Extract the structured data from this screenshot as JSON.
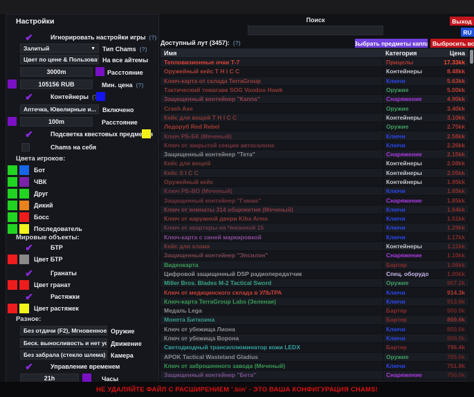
{
  "sidebar": {
    "title": "Настройки",
    "ignore_game_settings": {
      "label": "Игнорировать настройки игры",
      "help": "(?)"
    },
    "chams_type": {
      "value": "Залитый",
      "label": "Тип Chams",
      "help": "(?)"
    },
    "all_items": {
      "value": "Цвет по цене & Пользователь",
      "label": "На все айтемы"
    },
    "distance": {
      "value": "3000m",
      "label": "Расстояние",
      "swatch": "#7a10c4"
    },
    "min_price": {
      "value": "105156 RUB",
      "label": "Мин. цена",
      "help": "(?)",
      "swatch": "#7a10c4"
    },
    "containers": {
      "label": "Контейнеры",
      "help": "(?)",
      "swatch": "#1414f0"
    },
    "containers_filter": {
      "value": "Аптечка, Ювелирные и...",
      "label": "Включено"
    },
    "containers_distance": {
      "value": "100m",
      "label": "Расстояние",
      "swatch": "#7a10c4"
    },
    "quest_highlight": {
      "label": "Подсветка квестовых предметов",
      "swatch": "#f2f218"
    },
    "self_chams": {
      "label": "Chams на себя"
    },
    "player_colors_title": "Цвета игроков:",
    "player_colors": [
      {
        "label": "Бот",
        "c1": "#21d421",
        "c2": "#1766e8"
      },
      {
        "label": "ЧВК",
        "c1": "#21d421",
        "c2": "#7a22a8"
      },
      {
        "label": "Друг",
        "c1": "#21d421",
        "c2": "#21d421"
      },
      {
        "label": "Дикий",
        "c1": "#21d421",
        "c2": "#e8821c"
      },
      {
        "label": "Босс",
        "c1": "#21d421",
        "c2": "#ee1c1c"
      },
      {
        "label": "Последователь",
        "c1": "#21d421",
        "c2": "#f2f21c"
      }
    ],
    "world_objects_title": "Мировые объекты:",
    "btr": {
      "label": "БТР"
    },
    "btr_color": {
      "label": "Цвет БТР",
      "c1": "#ee1c1c",
      "c2": "#8a8a8a"
    },
    "grenades": {
      "label": "Гранаты"
    },
    "grenade_color": {
      "label": "Цвет гранат",
      "c1": "#ee1c1c",
      "c2": "#ee1c1c"
    },
    "tripwires": {
      "label": "Растяжки"
    },
    "tripwire_color": {
      "label": "Цвет растяжек",
      "c1": "#ee1c1c",
      "c2": "#f2f21c"
    },
    "misc_title": "Разное:",
    "weapon": {
      "value": "Без отдачи (F2), Мгновенное п",
      "label": "Оружие"
    },
    "movement": {
      "value": "Беск. выносливость и нет уста",
      "label": "Движение"
    },
    "camera": {
      "value": "Без забрала (стекло шлема)",
      "label": "Камера"
    },
    "time_control": {
      "label": "Управление временем"
    },
    "hours": {
      "value": "21h",
      "label": "Часы",
      "swatch": "#7a10c4"
    }
  },
  "header": {
    "search_label": "Поиск",
    "search_value": "",
    "exit_button": "Выход",
    "lang_button": "RU",
    "kappa_button": "Выбрать предметы каппа",
    "discard_button": "Выбросить все",
    "loot_label": "Доступный лут (3457):",
    "loot_help": "(?)"
  },
  "table": {
    "columns": {
      "name": "Имя",
      "category": "Категория",
      "price": "Цена"
    },
    "category_colors": {
      "Прицелы": "#b03a2e",
      "Контейнеры": "#c7c7cf",
      "Ключи": "#2a46e8",
      "Оружие": "#3f9e63",
      "Снаряжение": "#a83ae0",
      "Бартер": "#8a2d2d",
      "Спец. оборудование": "#cbb8ea"
    },
    "rows": [
      {
        "name": "Тепловизионные очки Т-7",
        "name_color": "#e04438",
        "category": "Прицелы",
        "price": "17.33kk",
        "price_color": "#ff4b33"
      },
      {
        "name": "Оружейный кейс Т Н I С С",
        "name_color": "#aa4038",
        "category": "Контейнеры",
        "price": "8.48kk",
        "price_color": "#cf4136"
      },
      {
        "name": "Ключ-карта от склада TerraGroup",
        "name_color": "#9a3c38",
        "category": "Ключи",
        "price": "5.63kk",
        "price_color": "#c23e34"
      },
      {
        "name": "Тактический томагавк SOG Voodoo Hawk",
        "name_color": "#8e3834",
        "category": "Оружие",
        "price": "5.00kk",
        "price_color": "#bc3c33"
      },
      {
        "name": "Защищенный контейнер \"Каппа\"",
        "name_color": "#93404e",
        "category": "Снаряжение",
        "price": "4.90kk",
        "price_color": "#b63a32"
      },
      {
        "name": "Crash Axe",
        "name_color": "#8a3a36",
        "category": "Оружие",
        "price": "3.40kk",
        "price_color": "#b03931"
      },
      {
        "name": "Кейс для вещей Т Н I С С",
        "name_color": "#8a3a36",
        "category": "Контейнеры",
        "price": "3.10kk",
        "price_color": "#ab3830"
      },
      {
        "name": "Ледоруб Red Rebel",
        "name_color": "#a03a34",
        "category": "Оружие",
        "price": "2.75kk",
        "price_color": "#a63630"
      },
      {
        "name": "Ключ РБ-БК (Меченый)",
        "name_color": "#7a3440",
        "category": "Ключи",
        "price": "2.58kk",
        "price_color": "#a2352f"
      },
      {
        "name": "Ключ от закрытой секции автосалона",
        "name_color": "#7a3440",
        "category": "Ключи",
        "price": "2.26kk",
        "price_color": "#9e342e"
      },
      {
        "name": "Защищенный контейнер \"Тета\"",
        "name_color": "#8d8d92",
        "category": "Снаряжение",
        "price": "2.15kk",
        "price_color": "#9a332e"
      },
      {
        "name": "Кейс для вещей",
        "name_color": "#7e3a38",
        "category": "Контейнеры",
        "price": "2.08kk",
        "price_color": "#96322d"
      },
      {
        "name": "Кейс S I C C",
        "name_color": "#7e3a38",
        "category": "Контейнеры",
        "price": "2.05kk",
        "price_color": "#93312d"
      },
      {
        "name": "Оружейный кейс",
        "name_color": "#7e3a38",
        "category": "Контейнеры",
        "price": "1.95kk",
        "price_color": "#8f302c"
      },
      {
        "name": "Ключ РБ-ВО (Меченый)",
        "name_color": "#743440",
        "category": "Ключи",
        "price": "1.85kk",
        "price_color": "#8c2f2b"
      },
      {
        "name": "Защищенный контейнер \"Гамма\"",
        "name_color": "#743440",
        "category": "Снаряжение",
        "price": "1.85kk",
        "price_color": "#8c2f2b"
      },
      {
        "name": "Ключ от комнаты 314 общежития (Меченый)",
        "name_color": "#8a3a44",
        "category": "Ключи",
        "price": "1.64kk",
        "price_color": "#892e2a"
      },
      {
        "name": "Ключ от наружной двери Kiba Arms",
        "name_color": "#8a3a38",
        "category": "Ключи",
        "price": "1.51kk",
        "price_color": "#862d2a"
      },
      {
        "name": "Ключ от квартиры на Чеканной 15",
        "name_color": "#703a4a",
        "category": "Ключи",
        "price": "1.29kk",
        "price_color": "#832c29"
      },
      {
        "name": "Ключ-карта с синей маркировкой",
        "name_color": "#8a4a9a",
        "category": "Ключи",
        "price": "1.17kk",
        "price_color": "#802b28"
      },
      {
        "name": "Кейс для хлама",
        "name_color": "#7e3a38",
        "category": "Контейнеры",
        "price": "1.11kk",
        "price_color": "#7e2b28"
      },
      {
        "name": "Защищенный контейнер \"Эпсилон\"",
        "name_color": "#7c4652",
        "category": "Снаряжение",
        "price": "1.10kk",
        "price_color": "#7c2a27"
      },
      {
        "name": "Видеокарта",
        "name_color": "#3a9a55",
        "category": "Бартер",
        "price": "1.06kk",
        "price_color": "#7a2a27"
      },
      {
        "name": "Цифровой защищенный DSP радиопередатчик",
        "name_color": "#93939b",
        "category": "Спец. оборудование",
        "price": "1.00kk",
        "price_color": "#782926"
      },
      {
        "name": "Miller Bros. Blades M-2 Tactical Sword",
        "name_color": "#3aa585",
        "category": "Оружие",
        "price": "967.2k",
        "price_color": "#762926"
      },
      {
        "name": "Ключ от медицинского склада в УЛЬТРА",
        "name_color": "#c84038",
        "category": "Ключи",
        "price": "914.3k",
        "price_color": "#b83a32"
      },
      {
        "name": "Ключ-карта TerraGroup Labs (Зеленая)",
        "name_color": "#3a9a55",
        "category": "Ключи",
        "price": "913.8k",
        "price_color": "#742825"
      },
      {
        "name": "Медаль Lega",
        "name_color": "#8d8d92",
        "category": "Бартер",
        "price": "900.0k",
        "price_color": "#722825"
      },
      {
        "name": "Монета Биткоина",
        "name_color": "#3a9a8a",
        "category": "Бартер",
        "price": "869.6k",
        "price_color": "#9c342e"
      },
      {
        "name": "Ключ от убежища Лиона",
        "name_color": "#8d8d92",
        "category": "Ключи",
        "price": "850.0k",
        "price_color": "#702724"
      },
      {
        "name": "Ключ от убежища Ворона",
        "name_color": "#8d8d92",
        "category": "Ключи",
        "price": "800.0k",
        "price_color": "#6e2624"
      },
      {
        "name": "Светодиодный трансиллюминатор кожи LEDX",
        "name_color": "#35a0a0",
        "category": "Бартер",
        "price": "796.4k",
        "price_color": "#8a2e2a"
      },
      {
        "name": "APOK Tactical Wasteland Gladius",
        "name_color": "#8d8d92",
        "category": "Оружие",
        "price": "785.0k",
        "price_color": "#6c2623"
      },
      {
        "name": "Ключ от заброшенного завода (Меченый)",
        "name_color": "#3a9a55",
        "category": "Ключи",
        "price": "751.8k",
        "price_color": "#822c28"
      },
      {
        "name": "Защищенный контейнер \"Бета\"",
        "name_color": "#7c5290",
        "category": "Снаряжение",
        "price": "750.0k",
        "price_color": "#6a2522"
      }
    ]
  },
  "footer": {
    "warning": "НЕ УДАЛЯЙТЕ ФАЙЛ С РАСШИРЕНИЕМ '.bin' - ЭТО ВАША КОНФИГУРАЦИЯ CHAMS!"
  }
}
